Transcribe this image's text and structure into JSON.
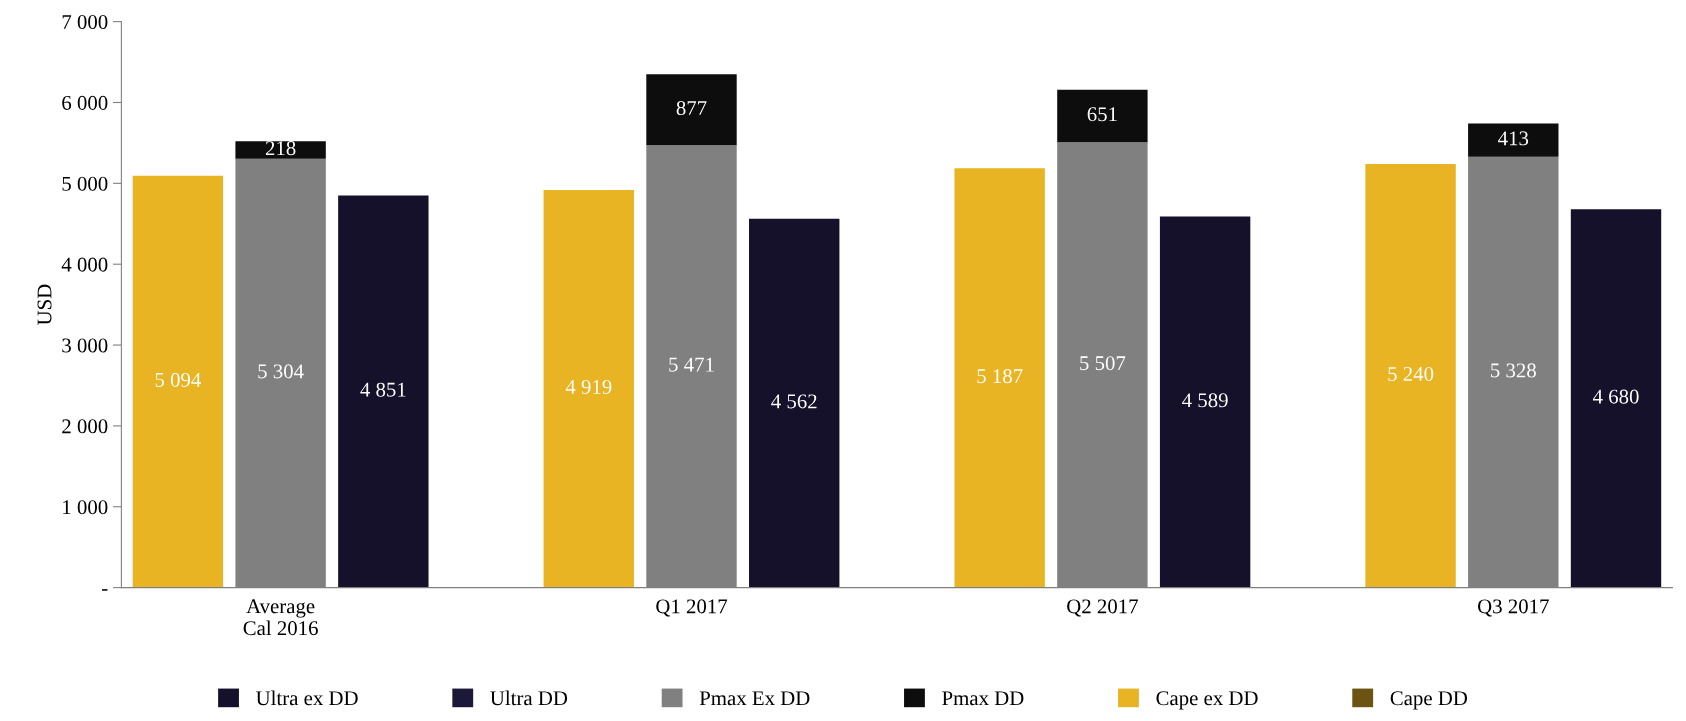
{
  "chart_data": {
    "type": "bar",
    "ylabel": "USD",
    "categories": [
      null,
      "Average\nCal 2016",
      null,
      null,
      null,
      "Q1 2017",
      null,
      null,
      null,
      "Q2 2017",
      null,
      null,
      null,
      "Q3 2017",
      null,
      null
    ],
    "stacked": true,
    "series": [
      {
        "name": "Ultra ex DD",
        "color": "#15112b",
        "values": [
          null,
          null,
          4851,
          null,
          null,
          null,
          4562,
          null,
          null,
          null,
          4589,
          null,
          null,
          null,
          4680,
          null
        ]
      },
      {
        "name": "Ultra DD",
        "color": "#1c1838",
        "values": [
          null,
          null,
          null,
          null,
          null,
          null,
          null,
          null,
          null,
          null,
          null,
          null,
          null,
          null,
          null,
          null
        ]
      },
      {
        "name": "Pmax Ex DD",
        "color": "#808080",
        "values": [
          null,
          5304,
          null,
          null,
          null,
          5471,
          null,
          null,
          null,
          5507,
          null,
          null,
          null,
          5328,
          null,
          null
        ]
      },
      {
        "name": "Pmax DD",
        "color": "#0d0d0d",
        "values": [
          null,
          218,
          null,
          null,
          null,
          877,
          null,
          null,
          null,
          651,
          null,
          null,
          null,
          413,
          null,
          null
        ]
      },
      {
        "name": "Cape ex DD",
        "color": "#e8b424",
        "values": [
          5094,
          null,
          null,
          null,
          4919,
          null,
          null,
          null,
          5187,
          null,
          null,
          null,
          5240,
          null,
          null,
          null
        ]
      },
      {
        "name": "Cape DD",
        "color": "#6b5412",
        "values": [
          null,
          null,
          null,
          null,
          null,
          null,
          null,
          null,
          null,
          null,
          null,
          null,
          null,
          null,
          null,
          null
        ]
      }
    ],
    "ylim": [
      0,
      7000
    ],
    "yticks": [
      {
        "value": 0,
        "label": "-"
      },
      {
        "value": 1000,
        "label": "1 000"
      },
      {
        "value": 2000,
        "label": "2 000"
      },
      {
        "value": 3000,
        "label": "3 000"
      },
      {
        "value": 4000,
        "label": "4 000"
      },
      {
        "value": 5000,
        "label": "5 000"
      },
      {
        "value": 6000,
        "label": "6 000"
      },
      {
        "value": 7000,
        "label": "7 000"
      }
    ],
    "data_labels": true,
    "grid": false,
    "legend": "bottom"
  }
}
